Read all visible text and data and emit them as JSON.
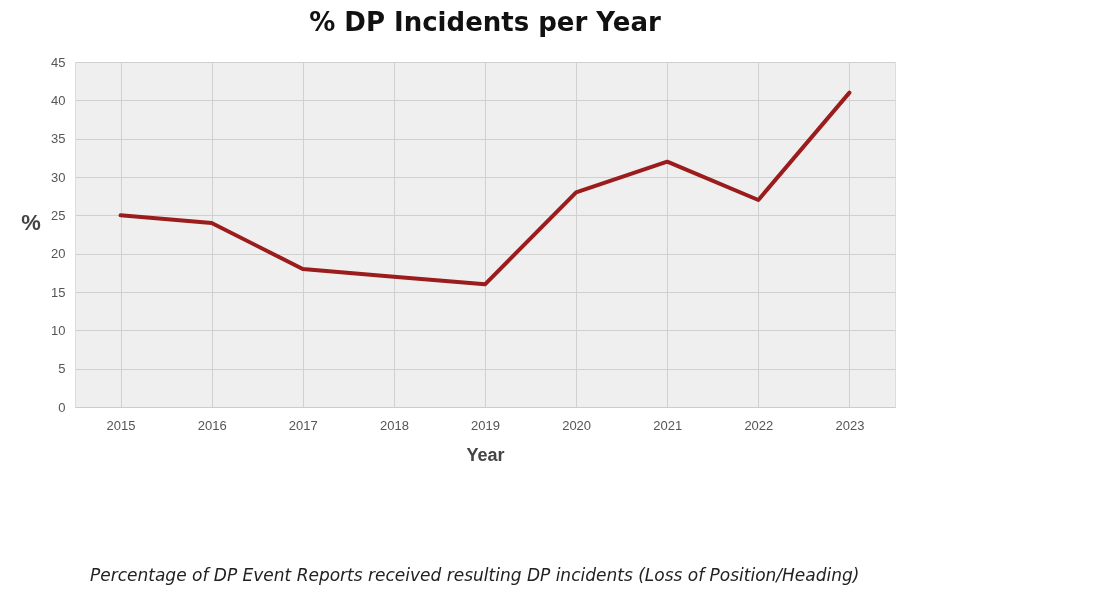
{
  "chart_data": {
    "type": "line",
    "title": "% DP Incidents per Year",
    "xlabel": "Year",
    "ylabel": "%",
    "categories": [
      "2015",
      "2016",
      "2017",
      "2018",
      "2019",
      "2020",
      "2021",
      "2022",
      "2023"
    ],
    "series": [
      {
        "color": "#9b1c1c",
        "values": [
          25,
          24,
          18,
          17,
          16,
          28,
          32,
          27,
          41
        ]
      }
    ],
    "ylim": [
      0,
      45
    ],
    "yticks": [
      0,
      5,
      10,
      15,
      20,
      25,
      30,
      35,
      40,
      45
    ],
    "grid": true,
    "legend": false,
    "marker": "none",
    "line_style": "solid",
    "annotations": [
      "Percentage of DP Event Reports received resulting DP incidents (Loss of Position/Heading)"
    ]
  }
}
